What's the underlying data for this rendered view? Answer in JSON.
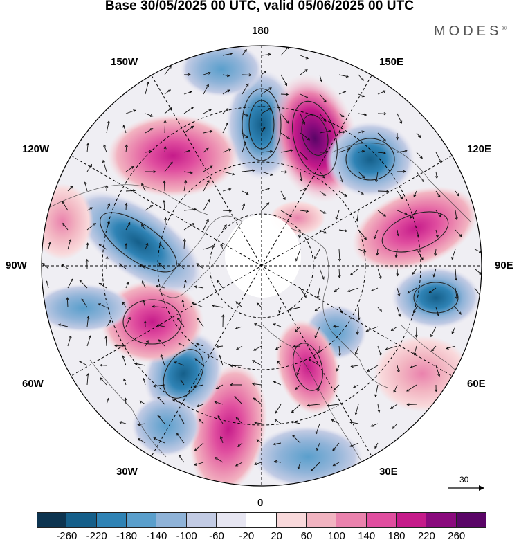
{
  "title": "Base 30/05/2025 00 UTC, valid 05/06/2025 00 UTC",
  "brand": "MODES",
  "brand_mark": "®",
  "lon_labels": {
    "top": "180",
    "bottom": "0",
    "left": "90W",
    "right": "90E",
    "nw1": "150W",
    "nw2": "120W",
    "sw1": "60W",
    "sw2": "30W",
    "ne1": "150E",
    "ne2": "120E",
    "se1": "60E",
    "se2": "30E"
  },
  "reference_vector_label": "30",
  "colorbar": {
    "labels": [
      "-260",
      "-220",
      "-180",
      "-140",
      "-100",
      "-60",
      "-20",
      "20",
      "60",
      "100",
      "140",
      "180",
      "220",
      "260"
    ],
    "colors": [
      "#0d3450",
      "#155f8a",
      "#2f83b5",
      "#5a9fcc",
      "#8fb3d8",
      "#c2cbe4",
      "#e7e6f2",
      "#ffffff",
      "#f9d9db",
      "#f2b4c1",
      "#ea82ad",
      "#e04e9f",
      "#c51b8a",
      "#8a0a7d",
      "#5a0567"
    ]
  },
  "icons": {
    "reference_arrow": "arrow-right-icon"
  }
}
